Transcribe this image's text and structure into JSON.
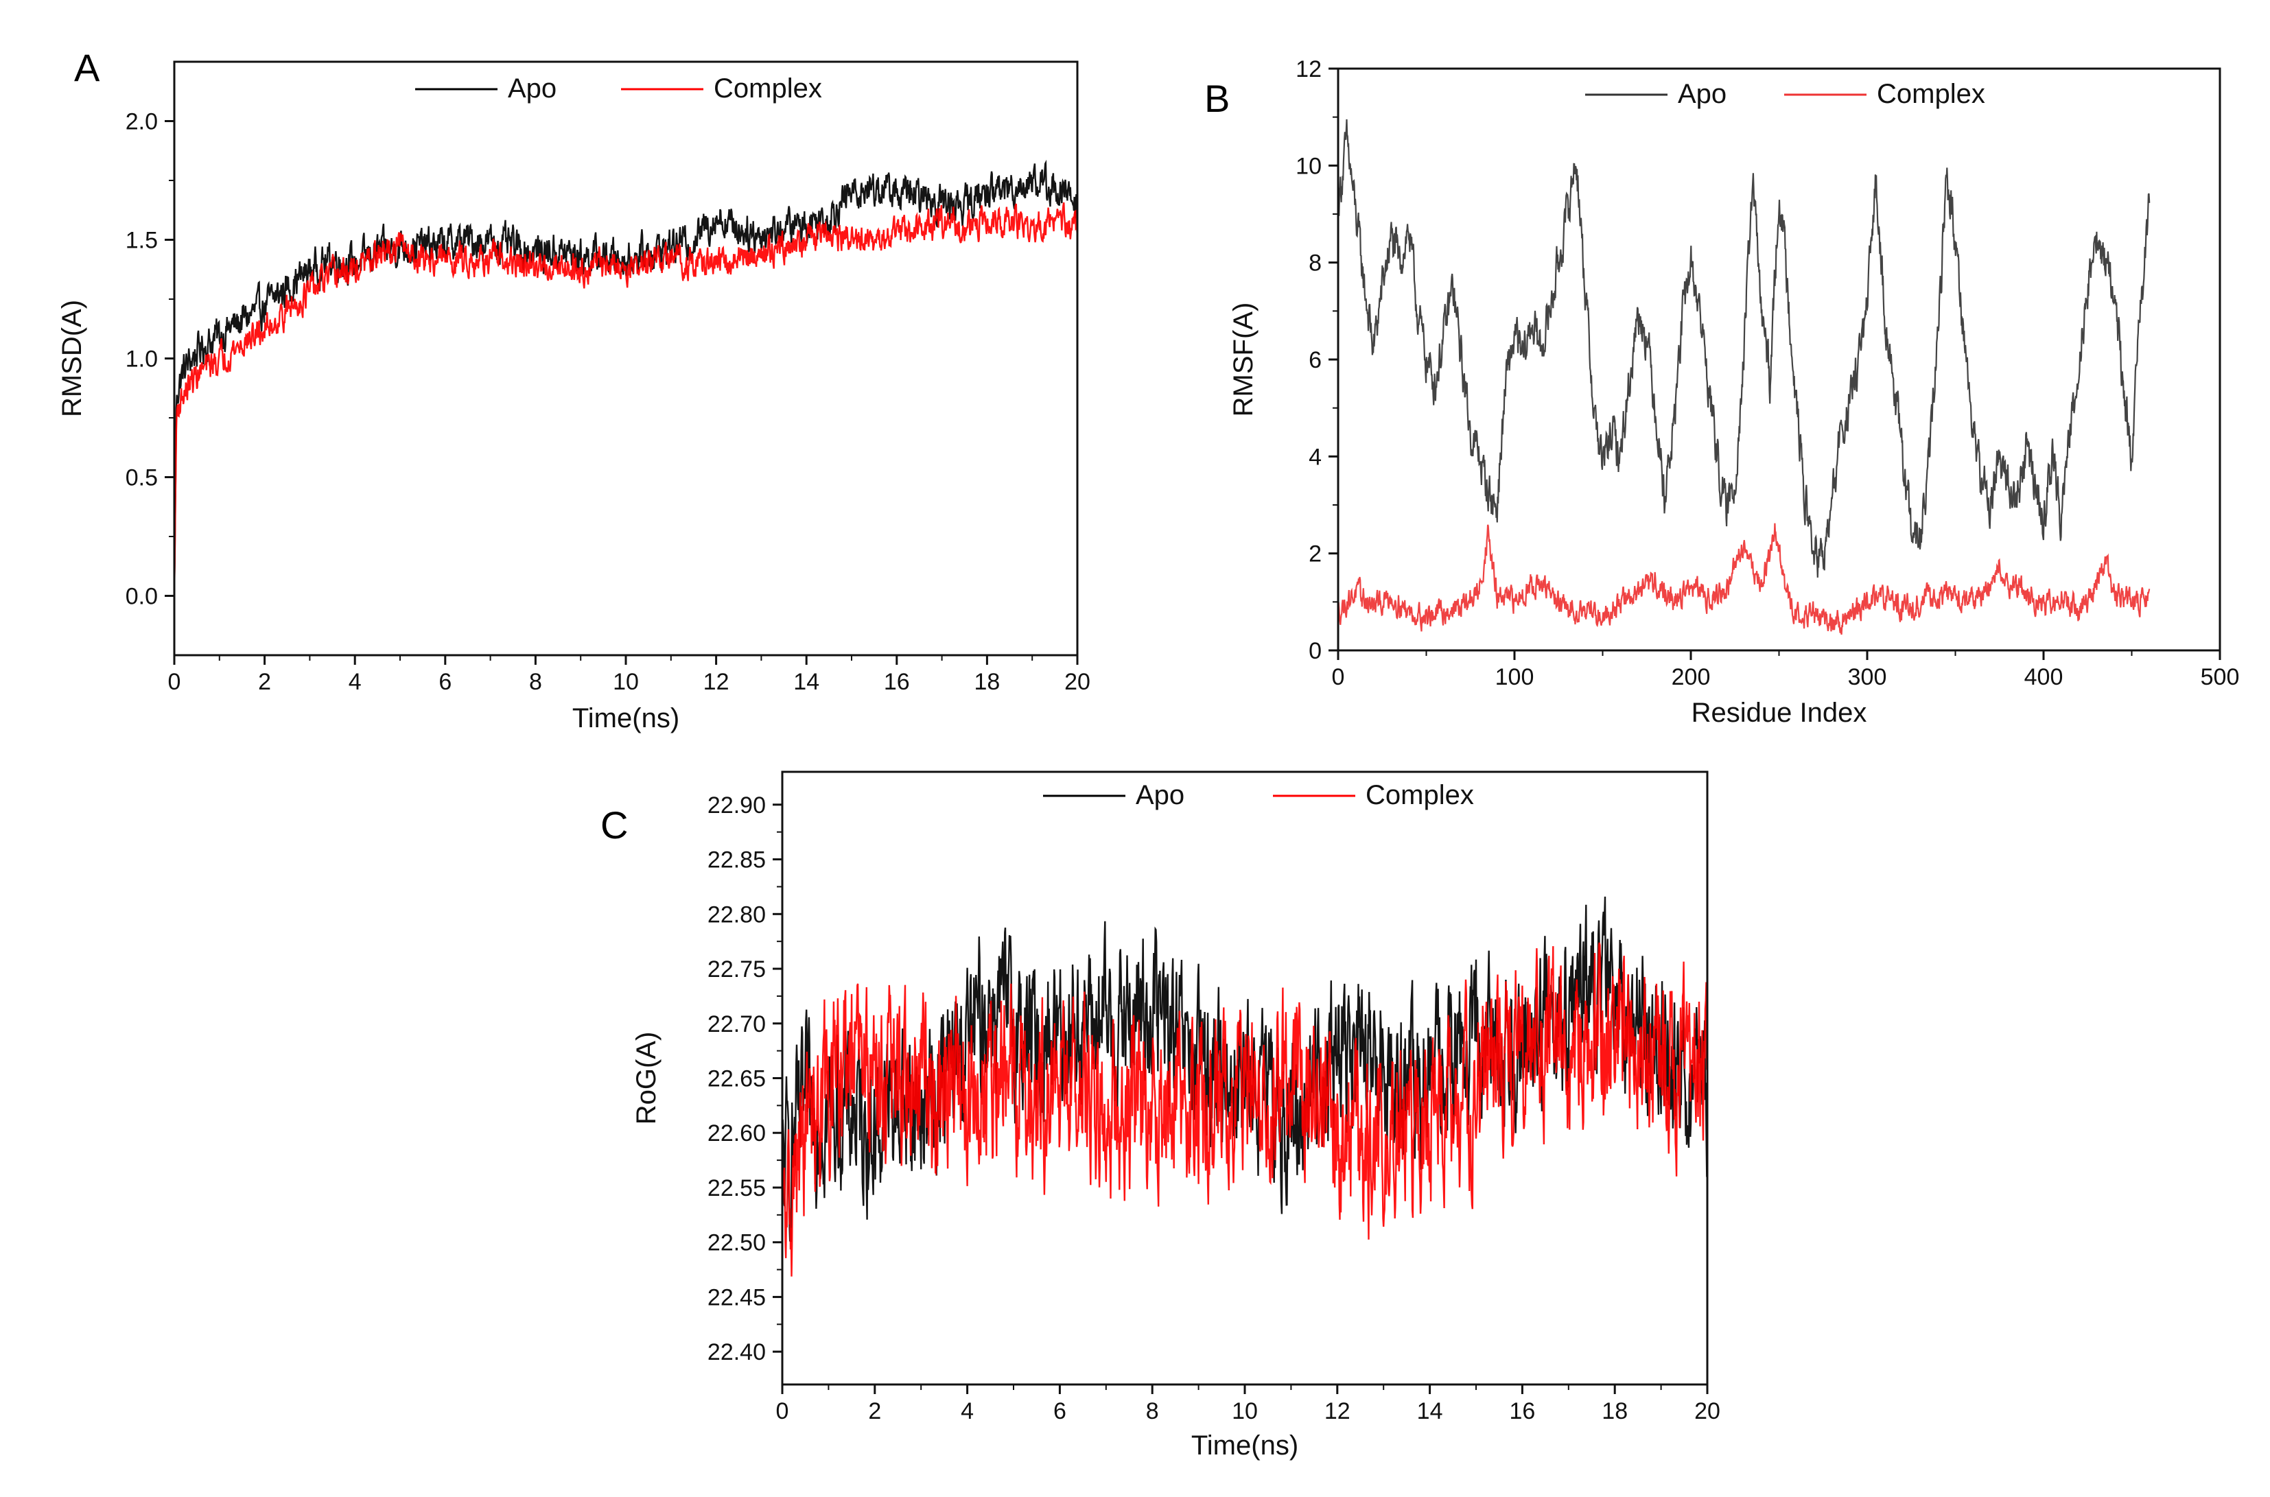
{
  "chart_data": [
    {
      "panel": "A",
      "type": "line",
      "xlabel": "Time(ns)",
      "ylabel": "RMSD(A)",
      "xlim": [
        0,
        20
      ],
      "ylim": [
        -0.25,
        2.25
      ],
      "xticks": [
        "0",
        "2",
        "4",
        "6",
        "8",
        "10",
        "12",
        "14",
        "16",
        "18",
        "20"
      ],
      "yticks": [
        "0.0",
        "0.5",
        "1.0",
        "1.5",
        "2.0"
      ],
      "legend_position": "top",
      "series": [
        {
          "name": "Apo",
          "color": "#000000",
          "x": [
            0,
            0.05,
            0.2,
            0.5,
            1,
            1.5,
            2,
            2.5,
            3,
            3.5,
            4,
            4.5,
            5,
            5.5,
            6,
            6.5,
            7,
            7.5,
            8,
            8.5,
            9,
            9.5,
            10,
            10.5,
            11,
            11.5,
            12,
            12.5,
            13,
            13.5,
            14,
            14.5,
            15,
            15.5,
            16,
            16.5,
            17,
            17.5,
            18,
            18.5,
            19,
            19.5,
            20
          ],
          "values": [
            0.0,
            0.85,
            0.95,
            1.03,
            1.1,
            1.16,
            1.22,
            1.3,
            1.37,
            1.42,
            1.4,
            1.45,
            1.47,
            1.47,
            1.48,
            1.5,
            1.49,
            1.47,
            1.45,
            1.45,
            1.43,
            1.43,
            1.42,
            1.45,
            1.47,
            1.5,
            1.6,
            1.55,
            1.52,
            1.55,
            1.57,
            1.6,
            1.7,
            1.72,
            1.7,
            1.68,
            1.66,
            1.65,
            1.7,
            1.72,
            1.75,
            1.72,
            1.65
          ],
          "noise": 0.06
        },
        {
          "name": "Complex",
          "color": "#ff0000",
          "x": [
            0,
            0.05,
            0.2,
            0.5,
            1,
            1.5,
            2,
            2.5,
            3,
            3.5,
            4,
            4.5,
            5,
            5.5,
            6,
            6.5,
            7,
            7.5,
            8,
            8.5,
            9,
            9.5,
            10,
            10.5,
            11,
            11.5,
            12,
            12.5,
            13,
            13.5,
            14,
            14.5,
            15,
            15.5,
            16,
            16.5,
            17,
            17.5,
            18,
            18.5,
            19,
            19.5,
            20
          ],
          "values": [
            0.0,
            0.78,
            0.85,
            0.93,
            1.0,
            1.06,
            1.12,
            1.2,
            1.28,
            1.35,
            1.37,
            1.43,
            1.47,
            1.42,
            1.42,
            1.42,
            1.42,
            1.4,
            1.38,
            1.4,
            1.38,
            1.4,
            1.38,
            1.4,
            1.42,
            1.4,
            1.4,
            1.42,
            1.45,
            1.47,
            1.5,
            1.52,
            1.5,
            1.48,
            1.52,
            1.55,
            1.57,
            1.55,
            1.58,
            1.57,
            1.55,
            1.58,
            1.55
          ],
          "noise": 0.05
        }
      ]
    },
    {
      "panel": "B",
      "type": "line",
      "xlabel": "Residue Index",
      "ylabel": "RMSF(A)",
      "xlim": [
        0,
        500
      ],
      "ylim": [
        0,
        12
      ],
      "xticks": [
        "0",
        "100",
        "200",
        "300",
        "400",
        "500"
      ],
      "yticks": [
        "0",
        "2",
        "4",
        "6",
        "8",
        "10",
        "12"
      ],
      "legend_position": "top",
      "series": [
        {
          "name": "Apo",
          "color": "#333333",
          "x": [
            0,
            5,
            10,
            15,
            20,
            25,
            30,
            35,
            40,
            45,
            50,
            55,
            60,
            65,
            70,
            75,
            80,
            85,
            90,
            95,
            100,
            105,
            110,
            115,
            120,
            125,
            130,
            135,
            140,
            145,
            150,
            155,
            160,
            165,
            170,
            175,
            180,
            185,
            190,
            195,
            200,
            205,
            210,
            215,
            220,
            225,
            230,
            235,
            240,
            245,
            250,
            255,
            260,
            265,
            270,
            275,
            280,
            285,
            290,
            295,
            300,
            305,
            310,
            315,
            320,
            325,
            330,
            335,
            340,
            345,
            350,
            355,
            360,
            365,
            370,
            375,
            380,
            385,
            390,
            395,
            400,
            405,
            410,
            415,
            420,
            425,
            430,
            435,
            440,
            445,
            450,
            455,
            460
          ],
          "values": [
            9.2,
            10.5,
            9.0,
            7.5,
            6.2,
            7.5,
            8.5,
            8.0,
            8.7,
            7.0,
            6.0,
            5.5,
            6.5,
            7.5,
            6.0,
            4.5,
            4.0,
            3.3,
            2.9,
            5.5,
            6.5,
            6.0,
            6.8,
            6.2,
            7.0,
            8.0,
            9.0,
            10.2,
            7.5,
            5.0,
            3.8,
            4.5,
            4.0,
            5.5,
            7.0,
            6.5,
            5.0,
            3.2,
            4.5,
            6.8,
            8.0,
            7.0,
            5.5,
            4.0,
            2.8,
            3.5,
            6.0,
            9.8,
            7.0,
            5.5,
            9.5,
            7.5,
            5.0,
            3.0,
            2.0,
            1.8,
            3.0,
            4.5,
            5.0,
            6.0,
            7.0,
            9.8,
            7.0,
            5.5,
            4.0,
            2.5,
            2.2,
            3.8,
            6.5,
            9.8,
            8.5,
            6.5,
            4.5,
            3.5,
            3.0,
            4.0,
            3.5,
            3.0,
            4.2,
            3.5,
            2.6,
            4.0,
            2.8,
            4.5,
            6.0,
            7.5,
            8.5,
            8.0,
            7.5,
            5.5,
            4.0,
            7.0,
            9.2
          ],
          "noise": 0.35
        },
        {
          "name": "Complex",
          "color": "#ee3333",
          "x": [
            0,
            10,
            20,
            30,
            40,
            50,
            60,
            70,
            80,
            85,
            90,
            100,
            110,
            120,
            130,
            140,
            150,
            160,
            170,
            180,
            190,
            200,
            210,
            220,
            230,
            240,
            248,
            255,
            260,
            270,
            280,
            290,
            300,
            310,
            320,
            330,
            340,
            350,
            360,
            370,
            375,
            380,
            390,
            400,
            410,
            420,
            430,
            435,
            440,
            450,
            460
          ],
          "values": [
            0.8,
            1.2,
            0.9,
            1.1,
            0.8,
            0.7,
            0.8,
            0.9,
            1.2,
            2.4,
            1.1,
            1.0,
            1.4,
            1.2,
            0.8,
            0.9,
            0.7,
            1.0,
            1.2,
            1.4,
            1.0,
            1.3,
            1.1,
            1.2,
            2.2,
            1.3,
            2.5,
            1.0,
            0.8,
            0.7,
            0.6,
            0.7,
            1.0,
            1.1,
            0.9,
            1.0,
            1.2,
            1.1,
            1.0,
            1.3,
            1.8,
            1.4,
            1.2,
            0.9,
            1.1,
            0.8,
            1.3,
            1.8,
            1.2,
            1.0,
            1.0
          ],
          "noise": 0.2
        }
      ]
    },
    {
      "panel": "C",
      "type": "line",
      "xlabel": "Time(ns)",
      "ylabel": "RoG(A)",
      "xlim": [
        0,
        20
      ],
      "ylim": [
        22.37,
        22.93
      ],
      "xticks": [
        "0",
        "2",
        "4",
        "6",
        "8",
        "10",
        "12",
        "14",
        "16",
        "18",
        "20"
      ],
      "yticks": [
        "22.40",
        "22.45",
        "22.50",
        "22.55",
        "22.60",
        "22.65",
        "22.70",
        "22.75",
        "22.80",
        "22.85",
        "22.90"
      ],
      "legend_position": "top",
      "series": [
        {
          "name": "Apo",
          "color": "#000000",
          "x": [
            0,
            0.5,
            1,
            1.5,
            2,
            2.5,
            3,
            3.5,
            4,
            4.5,
            5,
            5.5,
            6,
            6.5,
            7,
            7.5,
            8,
            8.5,
            9,
            9.5,
            10,
            10.5,
            11,
            11.5,
            12,
            12.5,
            13,
            13.5,
            14,
            14.5,
            15,
            15.5,
            16,
            16.5,
            17,
            17.5,
            18,
            18.5,
            19,
            19.5,
            20
          ],
          "values": [
            22.56,
            22.62,
            22.62,
            22.62,
            22.6,
            22.63,
            22.62,
            22.65,
            22.68,
            22.72,
            22.7,
            22.68,
            22.7,
            22.7,
            22.7,
            22.7,
            22.72,
            22.68,
            22.66,
            22.66,
            22.65,
            22.63,
            22.6,
            22.65,
            22.68,
            22.66,
            22.66,
            22.64,
            22.65,
            22.67,
            22.68,
            22.68,
            22.69,
            22.7,
            22.72,
            22.73,
            22.72,
            22.7,
            22.68,
            22.65,
            22.63
          ],
          "noise": 0.055
        },
        {
          "name": "Complex",
          "color": "#ff0000",
          "x": [
            0,
            0.5,
            1,
            1.5,
            2,
            2.5,
            3,
            3.5,
            4,
            4.5,
            5,
            5.5,
            6,
            6.5,
            7,
            7.5,
            8,
            8.5,
            9,
            9.5,
            10,
            10.5,
            11,
            11.5,
            12,
            12.5,
            13,
            13.5,
            14,
            14.5,
            15,
            15.5,
            16,
            16.5,
            17,
            17.5,
            18,
            18.5,
            19,
            19.5,
            20
          ],
          "values": [
            22.5,
            22.6,
            22.64,
            22.66,
            22.66,
            22.65,
            22.64,
            22.64,
            22.63,
            22.64,
            22.65,
            22.64,
            22.64,
            22.64,
            22.63,
            22.62,
            22.63,
            22.63,
            22.62,
            22.64,
            22.64,
            22.64,
            22.66,
            22.62,
            22.6,
            22.58,
            22.59,
            22.6,
            22.6,
            22.62,
            22.64,
            22.66,
            22.67,
            22.67,
            22.68,
            22.68,
            22.68,
            22.67,
            22.66,
            22.66,
            22.65
          ],
          "noise": 0.06
        }
      ]
    }
  ]
}
